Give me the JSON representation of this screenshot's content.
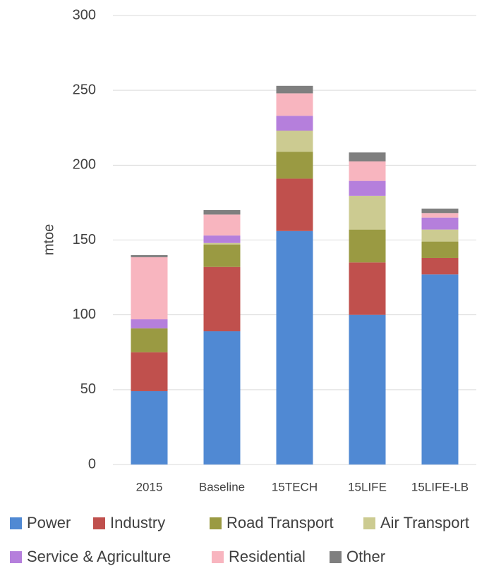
{
  "chart_data": {
    "type": "stacked_bar",
    "y_label": "mtoe",
    "categories": [
      "2015",
      "Baseline",
      "15TECH",
      "15LIFE",
      "15LIFE-LB"
    ],
    "series": [
      {
        "name": "Power",
        "color": "#5089d3",
        "values": [
          49,
          89,
          156,
          100,
          127
        ]
      },
      {
        "name": "Industry",
        "color": "#c0504d",
        "values": [
          26,
          43,
          35,
          35,
          11
        ]
      },
      {
        "name": "Road Transport",
        "color": "#9a9a42",
        "values": [
          16,
          15,
          18,
          22,
          11
        ]
      },
      {
        "name": "Air Transport",
        "color": "#cccb91",
        "values": [
          0,
          1,
          14,
          22.5,
          8
        ]
      },
      {
        "name": "Service & Agriculture",
        "color": "#b57fdc",
        "values": [
          6,
          5,
          10,
          10,
          8
        ]
      },
      {
        "name": "Residential",
        "color": "#f8b5bf",
        "values": [
          41.5,
          14,
          15,
          13,
          3
        ]
      },
      {
        "name": "Other",
        "color": "#7f7f7f",
        "values": [
          1.4,
          3,
          5,
          6,
          3
        ]
      }
    ],
    "ylim": [
      0,
      300
    ],
    "yticks": [
      0,
      50,
      100,
      150,
      200,
      250,
      300
    ],
    "grid": true,
    "legend": "bottom"
  }
}
